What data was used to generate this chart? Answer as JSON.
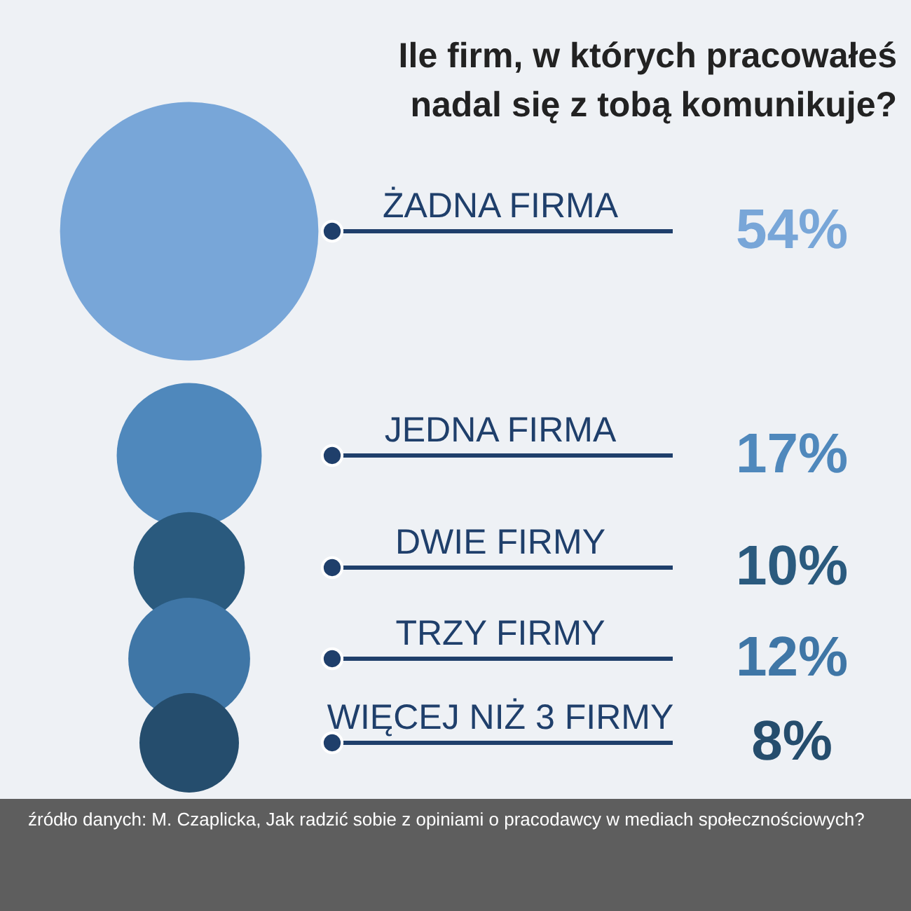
{
  "chart_data": {
    "type": "other",
    "title": [
      "Ile firm, w których pracowałeś",
      "nadal się z tobą komunikuje?"
    ],
    "categories": [
      "ŻADNA FIRMA",
      "JEDNA FIRMA",
      "DWIE FIRMY",
      "TRZY FIRMY",
      "WIĘCEJ NIŻ 3 FIRMY"
    ],
    "values": [
      54,
      17,
      10,
      12,
      8
    ],
    "value_labels": [
      "54%",
      "17%",
      "10%",
      "12%",
      "8%"
    ],
    "colors": [
      "#78a6d8",
      "#4f88bc",
      "#2a5a7e",
      "#3f76a6",
      "#254d6d"
    ],
    "annotations": [
      "źródło danych: M. Czaplicka, Jak radzić sobie z opiniami o pracodawcy w mediach społecznościowych?"
    ]
  }
}
